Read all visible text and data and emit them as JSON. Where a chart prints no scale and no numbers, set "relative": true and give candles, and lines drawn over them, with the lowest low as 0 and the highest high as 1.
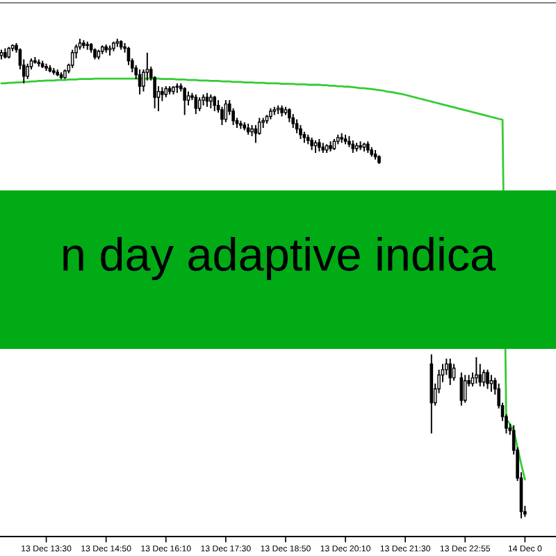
{
  "chart_data": {
    "type": "candlestick",
    "title": "n day adaptive indica",
    "relative": true,
    "categories": [
      null,
      null,
      null,
      null,
      null,
      null,
      null,
      null,
      null,
      null,
      null,
      null,
      "13 Dec 13:30",
      null,
      null,
      null,
      null,
      null,
      null,
      null,
      null,
      null,
      null,
      null,
      null,
      null,
      null,
      null,
      "13 Dec 14:50",
      null,
      null,
      null,
      null,
      null,
      null,
      null,
      null,
      null,
      null,
      null,
      null,
      null,
      null,
      null,
      "13 Dec 16:10",
      null,
      null,
      null,
      null,
      null,
      null,
      null,
      null,
      null,
      null,
      null,
      null,
      null,
      null,
      null,
      "13 Dec 17:30",
      null,
      null,
      null,
      null,
      null,
      null,
      null,
      null,
      null,
      null,
      null,
      null,
      null,
      null,
      null,
      "13 Dec 18:50",
      null,
      null,
      null,
      null,
      null,
      null,
      null,
      null,
      null,
      null,
      null,
      null,
      null,
      null,
      null,
      "13 Dec 20:10",
      null,
      null,
      null,
      null,
      null,
      null,
      null,
      null,
      null,
      null,
      null,
      null,
      null,
      null,
      null,
      "13 Dec 21:30",
      null,
      null,
      null,
      null,
      null,
      null,
      null,
      null,
      null,
      null,
      null,
      null,
      null,
      null,
      null,
      "13 Dec 22:55",
      null,
      null,
      null,
      null,
      null,
      null,
      null,
      null,
      null,
      null,
      null,
      null,
      null,
      null,
      null,
      "14 Dec 0"
    ],
    "series": [
      {
        "type": "line",
        "color": "#33cc33",
        "values": [
          0.907,
          0.907,
          0.908,
          0.908,
          0.909,
          0.909,
          0.91,
          0.91,
          0.911,
          0.911,
          0.912,
          0.912,
          0.913,
          0.913,
          0.913,
          0.914,
          0.914,
          0.914,
          0.915,
          0.915,
          0.915,
          0.916,
          0.916,
          0.916,
          0.916,
          0.917,
          0.917,
          0.917,
          0.917,
          0.917,
          0.917,
          0.917,
          0.917,
          0.917,
          0.917,
          0.917,
          0.917,
          0.917,
          0.917,
          0.917,
          0.917,
          0.917,
          0.917,
          0.916,
          0.916,
          0.916,
          0.916,
          0.915,
          0.915,
          0.915,
          0.914,
          0.914,
          0.914,
          0.913,
          0.913,
          0.913,
          0.912,
          0.912,
          0.912,
          0.911,
          0.911,
          0.911,
          0.91,
          0.91,
          0.91,
          0.909,
          0.909,
          0.909,
          0.908,
          0.908,
          0.908,
          0.907,
          0.907,
          0.907,
          0.907,
          0.906,
          0.906,
          0.906,
          0.906,
          0.905,
          0.905,
          0.905,
          0.904,
          0.904,
          0.904,
          0.904,
          0.903,
          0.903,
          0.902,
          0.902,
          0.901,
          0.901,
          0.9,
          0.9,
          0.899,
          0.898,
          0.897,
          0.897,
          0.896,
          0.895,
          0.894,
          0.893,
          0.892,
          0.89,
          0.889,
          0.888,
          0.886,
          0.885,
          0.883,
          0.881,
          0.879,
          0.877,
          0.875,
          0.873,
          0.871,
          0.869,
          0.867,
          0.865,
          0.863,
          0.861,
          0.859,
          0.857,
          0.855,
          0.853,
          0.851,
          0.849,
          0.847,
          0.845,
          0.843,
          0.841,
          0.839,
          0.837,
          0.835,
          0.833,
          0.831,
          0.206,
          0.197,
          0.183,
          0.148,
          0.113,
          0.081
        ]
      },
      {
        "color": "#000000",
        "ohlc": [
          [
            0.965,
            0.977,
            0.957,
            0.971
          ],
          [
            0.971,
            0.98,
            0.959,
            0.962
          ],
          [
            0.962,
            0.983,
            0.959,
            0.98
          ],
          [
            0.98,
            0.988,
            0.974,
            0.986
          ],
          [
            0.986,
            0.991,
            0.971,
            0.977
          ],
          [
            0.977,
            0.98,
            0.936,
            0.945
          ],
          [
            0.945,
            0.957,
            0.907,
            0.922
          ],
          [
            0.922,
            0.948,
            0.916,
            0.942
          ],
          [
            0.942,
            0.959,
            0.936,
            0.954
          ],
          [
            0.954,
            0.962,
            0.948,
            0.951
          ],
          [
            0.951,
            0.957,
            0.942,
            0.948
          ],
          [
            0.948,
            0.954,
            0.939,
            0.942
          ],
          [
            0.942,
            0.948,
            0.933,
            0.939
          ],
          [
            0.939,
            0.945,
            0.93,
            0.933
          ],
          [
            0.933,
            0.939,
            0.925,
            0.93
          ],
          [
            0.93,
            0.936,
            0.922,
            0.925
          ],
          [
            0.925,
            0.93,
            0.916,
            0.919
          ],
          [
            0.919,
            0.936,
            0.916,
            0.933
          ],
          [
            0.933,
            0.948,
            0.928,
            0.945
          ],
          [
            0.945,
            0.977,
            0.939,
            0.971
          ],
          [
            0.971,
            0.988,
            0.959,
            0.983
          ],
          [
            0.983,
            1.0,
            0.977,
            0.991
          ],
          [
            0.991,
            0.997,
            0.98,
            0.986
          ],
          [
            0.986,
            0.994,
            0.977,
            0.988
          ],
          [
            0.988,
            0.991,
            0.971,
            0.977
          ],
          [
            0.977,
            0.98,
            0.957,
            0.962
          ],
          [
            0.962,
            0.977,
            0.957,
            0.974
          ],
          [
            0.974,
            0.986,
            0.968,
            0.983
          ],
          [
            0.983,
            0.988,
            0.971,
            0.977
          ],
          [
            0.977,
            0.986,
            0.965,
            0.98
          ],
          [
            0.98,
            0.994,
            0.974,
            0.991
          ],
          [
            0.991,
            1.0,
            0.983,
            0.994
          ],
          [
            0.994,
            0.997,
            0.977,
            0.983
          ],
          [
            0.983,
            0.991,
            0.971,
            0.98
          ],
          [
            0.98,
            0.983,
            0.945,
            0.954
          ],
          [
            0.954,
            0.959,
            0.93,
            0.939
          ],
          [
            0.939,
            0.945,
            0.916,
            0.925
          ],
          [
            0.925,
            0.936,
            0.884,
            0.901
          ],
          [
            0.901,
            0.936,
            0.89,
            0.93
          ],
          [
            0.93,
            0.971,
            0.913,
            0.936
          ],
          [
            0.936,
            0.942,
            0.913,
            0.919
          ],
          [
            0.919,
            0.922,
            0.855,
            0.878
          ],
          [
            0.878,
            0.901,
            0.849,
            0.89
          ],
          [
            0.89,
            0.899,
            0.87,
            0.884
          ],
          [
            0.884,
            0.901,
            0.878,
            0.896
          ],
          [
            0.896,
            0.901,
            0.884,
            0.89
          ],
          [
            0.89,
            0.901,
            0.884,
            0.899
          ],
          [
            0.899,
            0.907,
            0.887,
            0.901
          ],
          [
            0.901,
            0.907,
            0.89,
            0.896
          ],
          [
            0.896,
            0.899,
            0.841,
            0.872
          ],
          [
            0.872,
            0.89,
            0.861,
            0.881
          ],
          [
            0.881,
            0.887,
            0.872,
            0.878
          ],
          [
            0.878,
            0.884,
            0.843,
            0.855
          ],
          [
            0.855,
            0.878,
            0.849,
            0.872
          ],
          [
            0.872,
            0.884,
            0.861,
            0.878
          ],
          [
            0.878,
            0.887,
            0.858,
            0.87
          ],
          [
            0.87,
            0.884,
            0.855,
            0.878
          ],
          [
            0.878,
            0.881,
            0.849,
            0.861
          ],
          [
            0.861,
            0.872,
            0.846,
            0.852
          ],
          [
            0.852,
            0.858,
            0.82,
            0.832
          ],
          [
            0.832,
            0.872,
            0.826,
            0.864
          ],
          [
            0.864,
            0.872,
            0.841,
            0.849
          ],
          [
            0.849,
            0.855,
            0.82,
            0.829
          ],
          [
            0.829,
            0.835,
            0.814,
            0.823
          ],
          [
            0.823,
            0.829,
            0.812,
            0.82
          ],
          [
            0.82,
            0.826,
            0.809,
            0.814
          ],
          [
            0.814,
            0.823,
            0.8,
            0.806
          ],
          [
            0.806,
            0.82,
            0.797,
            0.812
          ],
          [
            0.812,
            0.82,
            0.783,
            0.803
          ],
          [
            0.803,
            0.835,
            0.8,
            0.826
          ],
          [
            0.826,
            0.835,
            0.814,
            0.829
          ],
          [
            0.829,
            0.841,
            0.823,
            0.838
          ],
          [
            0.838,
            0.855,
            0.832,
            0.849
          ],
          [
            0.849,
            0.858,
            0.841,
            0.852
          ],
          [
            0.852,
            0.861,
            0.843,
            0.855
          ],
          [
            0.855,
            0.861,
            0.838,
            0.846
          ],
          [
            0.846,
            0.858,
            0.841,
            0.852
          ],
          [
            0.852,
            0.855,
            0.826,
            0.835
          ],
          [
            0.835,
            0.843,
            0.814,
            0.823
          ],
          [
            0.823,
            0.832,
            0.803,
            0.812
          ],
          [
            0.812,
            0.82,
            0.791,
            0.8
          ],
          [
            0.8,
            0.806,
            0.783,
            0.794
          ],
          [
            0.794,
            0.8,
            0.78,
            0.788
          ],
          [
            0.788,
            0.794,
            0.768,
            0.777
          ],
          [
            0.777,
            0.788,
            0.762,
            0.783
          ],
          [
            0.783,
            0.791,
            0.765,
            0.774
          ],
          [
            0.774,
            0.783,
            0.762,
            0.768
          ],
          [
            0.768,
            0.78,
            0.762,
            0.777
          ],
          [
            0.777,
            0.786,
            0.765,
            0.771
          ],
          [
            0.771,
            0.791,
            0.768,
            0.786
          ],
          [
            0.786,
            0.8,
            0.78,
            0.794
          ],
          [
            0.794,
            0.803,
            0.783,
            0.791
          ],
          [
            0.791,
            0.8,
            0.78,
            0.786
          ],
          [
            0.786,
            0.797,
            0.774,
            0.78
          ],
          [
            0.78,
            0.788,
            0.762,
            0.771
          ],
          [
            0.771,
            0.783,
            0.765,
            0.777
          ],
          [
            0.777,
            0.786,
            0.768,
            0.774
          ],
          [
            0.774,
            0.783,
            0.765,
            0.78
          ],
          [
            0.78,
            0.786,
            0.762,
            0.768
          ],
          [
            0.768,
            0.774,
            0.754,
            0.759
          ],
          [
            0.759,
            0.768,
            0.748,
            0.754
          ],
          [
            0.754,
            0.757,
            0.739,
            0.742
          ],
          null,
          null,
          null,
          null,
          null,
          null,
          null,
          null,
          null,
          null,
          null,
          null,
          null,
          [
            0.322,
            0.342,
            0.177,
            0.241
          ],
          [
            0.241,
            0.281,
            0.235,
            0.27
          ],
          [
            0.27,
            0.31,
            0.261,
            0.299
          ],
          [
            0.299,
            0.322,
            0.284,
            0.31
          ],
          [
            0.31,
            0.333,
            0.299,
            0.322
          ],
          [
            0.322,
            0.333,
            0.278,
            0.293
          ],
          [
            0.293,
            0.322,
            0.287,
            0.313
          ],
          null,
          [
            0.293,
            0.304,
            0.235,
            0.246
          ],
          [
            0.246,
            0.299,
            0.241,
            0.287
          ],
          [
            0.287,
            0.299,
            0.275,
            0.281
          ],
          [
            0.281,
            0.304,
            0.275,
            0.293
          ],
          [
            0.293,
            0.336,
            0.281,
            0.299
          ],
          [
            0.299,
            0.322,
            0.275,
            0.284
          ],
          [
            0.284,
            0.31,
            0.275,
            0.304
          ],
          [
            0.304,
            0.31,
            0.27,
            0.281
          ],
          [
            0.281,
            0.299,
            0.264,
            0.287
          ],
          [
            0.287,
            0.293,
            0.258,
            0.27
          ],
          [
            0.27,
            0.281,
            0.229,
            0.235
          ],
          [
            0.235,
            0.241,
            0.203,
            0.212
          ],
          [
            0.212,
            0.217,
            0.177,
            0.188
          ],
          [
            0.188,
            0.197,
            0.174,
            0.183
          ],
          [
            0.183,
            0.194,
            0.133,
            0.142
          ],
          [
            0.142,
            0.148,
            0.078,
            0.084
          ],
          [
            0.084,
            0.096,
            0,
            0.014
          ],
          [
            0.014,
            0.026,
            0.003,
            0.009
          ]
        ]
      }
    ]
  }
}
